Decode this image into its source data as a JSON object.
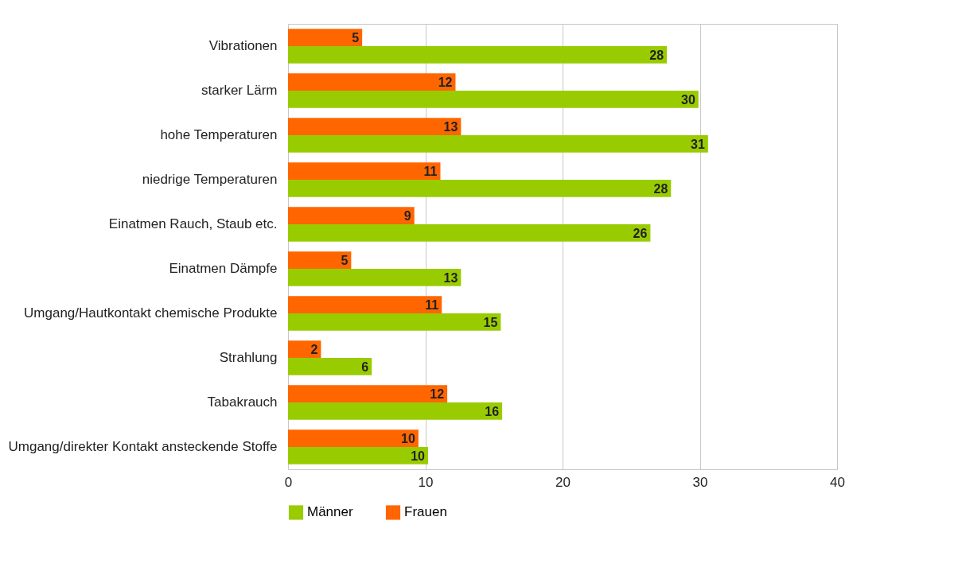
{
  "chart_data": {
    "type": "bar",
    "orientation": "horizontal",
    "categories": [
      "Vibrationen",
      "starker Lärm",
      "hohe Temperaturen",
      "niedrige Temperaturen",
      "Einatmen Rauch, Staub etc.",
      "Einatmen Dämpfe",
      "Umgang/Hautkontakt chemische Produkte",
      "Strahlung",
      "Tabakrauch",
      "Umgang/direkter Kontakt ansteckende Stoffe"
    ],
    "series": [
      {
        "name": "Männer",
        "color": "#99cc00",
        "values": [
          27.6,
          29.9,
          30.6,
          27.9,
          26.4,
          12.6,
          15.5,
          6.1,
          15.6,
          10.2
        ],
        "value_labels": [
          "28",
          "30",
          "31",
          "28",
          "26",
          "13",
          "15",
          "6",
          "16",
          "10"
        ]
      },
      {
        "name": "Frauen",
        "color": "#ff6600",
        "values": [
          5.4,
          12.2,
          12.6,
          11.1,
          9.2,
          4.6,
          11.2,
          2.4,
          11.6,
          9.5
        ],
        "value_labels": [
          "5",
          "12",
          "13",
          "11",
          "9",
          "5",
          "11",
          "2",
          "12",
          "10"
        ]
      }
    ],
    "xlim": [
      0,
      40
    ],
    "xticks": [
      0,
      10,
      20,
      30,
      40
    ],
    "grid": "x",
    "legend": "bottom"
  }
}
